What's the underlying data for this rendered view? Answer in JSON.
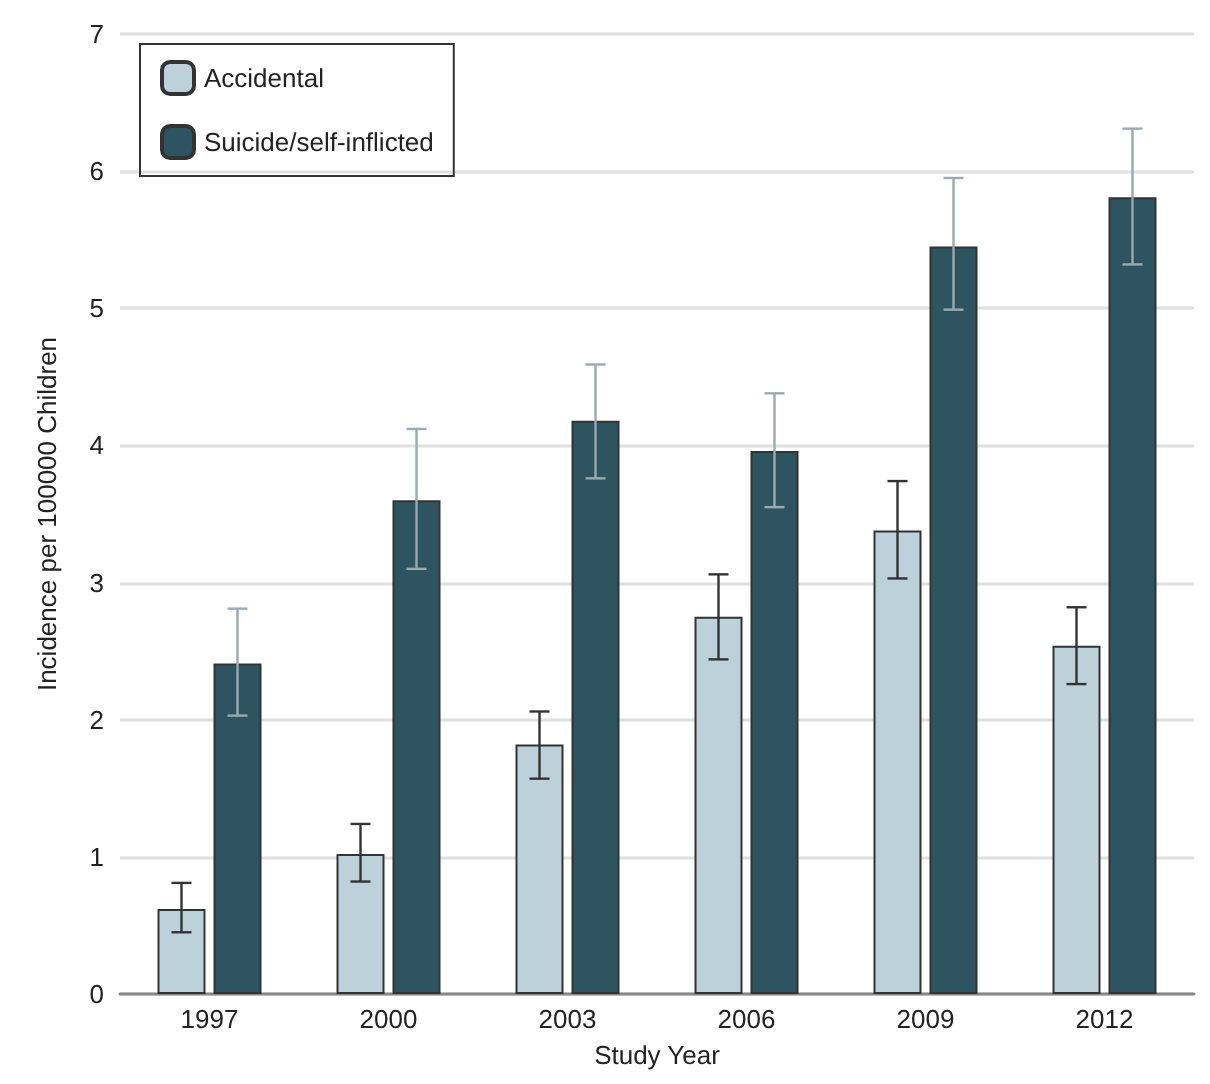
{
  "chart_data": {
    "type": "bar",
    "xlabel": "Study Year",
    "ylabel": "Incidence per 100000 Children",
    "categories": [
      "1997",
      "2000",
      "2003",
      "2006",
      "2009",
      "2012"
    ],
    "series": [
      {
        "name": "Accidental",
        "color": "#bdd1da",
        "values": [
          0.62,
          1.02,
          1.82,
          2.75,
          3.38,
          2.54
        ],
        "errors": [
          [
            0.45,
            0.81
          ],
          [
            0.82,
            1.24
          ],
          [
            1.57,
            2.06
          ],
          [
            2.44,
            3.06
          ],
          [
            3.03,
            3.74
          ],
          [
            2.26,
            2.82
          ]
        ]
      },
      {
        "name": "Suicide/self-inflicted",
        "color": "#2e5462",
        "values": [
          2.41,
          3.6,
          4.18,
          3.96,
          5.45,
          5.81
        ],
        "errors": [
          [
            2.03,
            2.81
          ],
          [
            3.1,
            4.12
          ],
          [
            3.76,
            4.59
          ],
          [
            3.55,
            4.38
          ],
          [
            4.99,
            5.95
          ],
          [
            5.32,
            6.31
          ]
        ]
      }
    ],
    "ylim": [
      0,
      7
    ],
    "yticks": [
      0,
      1,
      2,
      3,
      4,
      5,
      6,
      7
    ],
    "grid": "y",
    "legend": "top left"
  }
}
